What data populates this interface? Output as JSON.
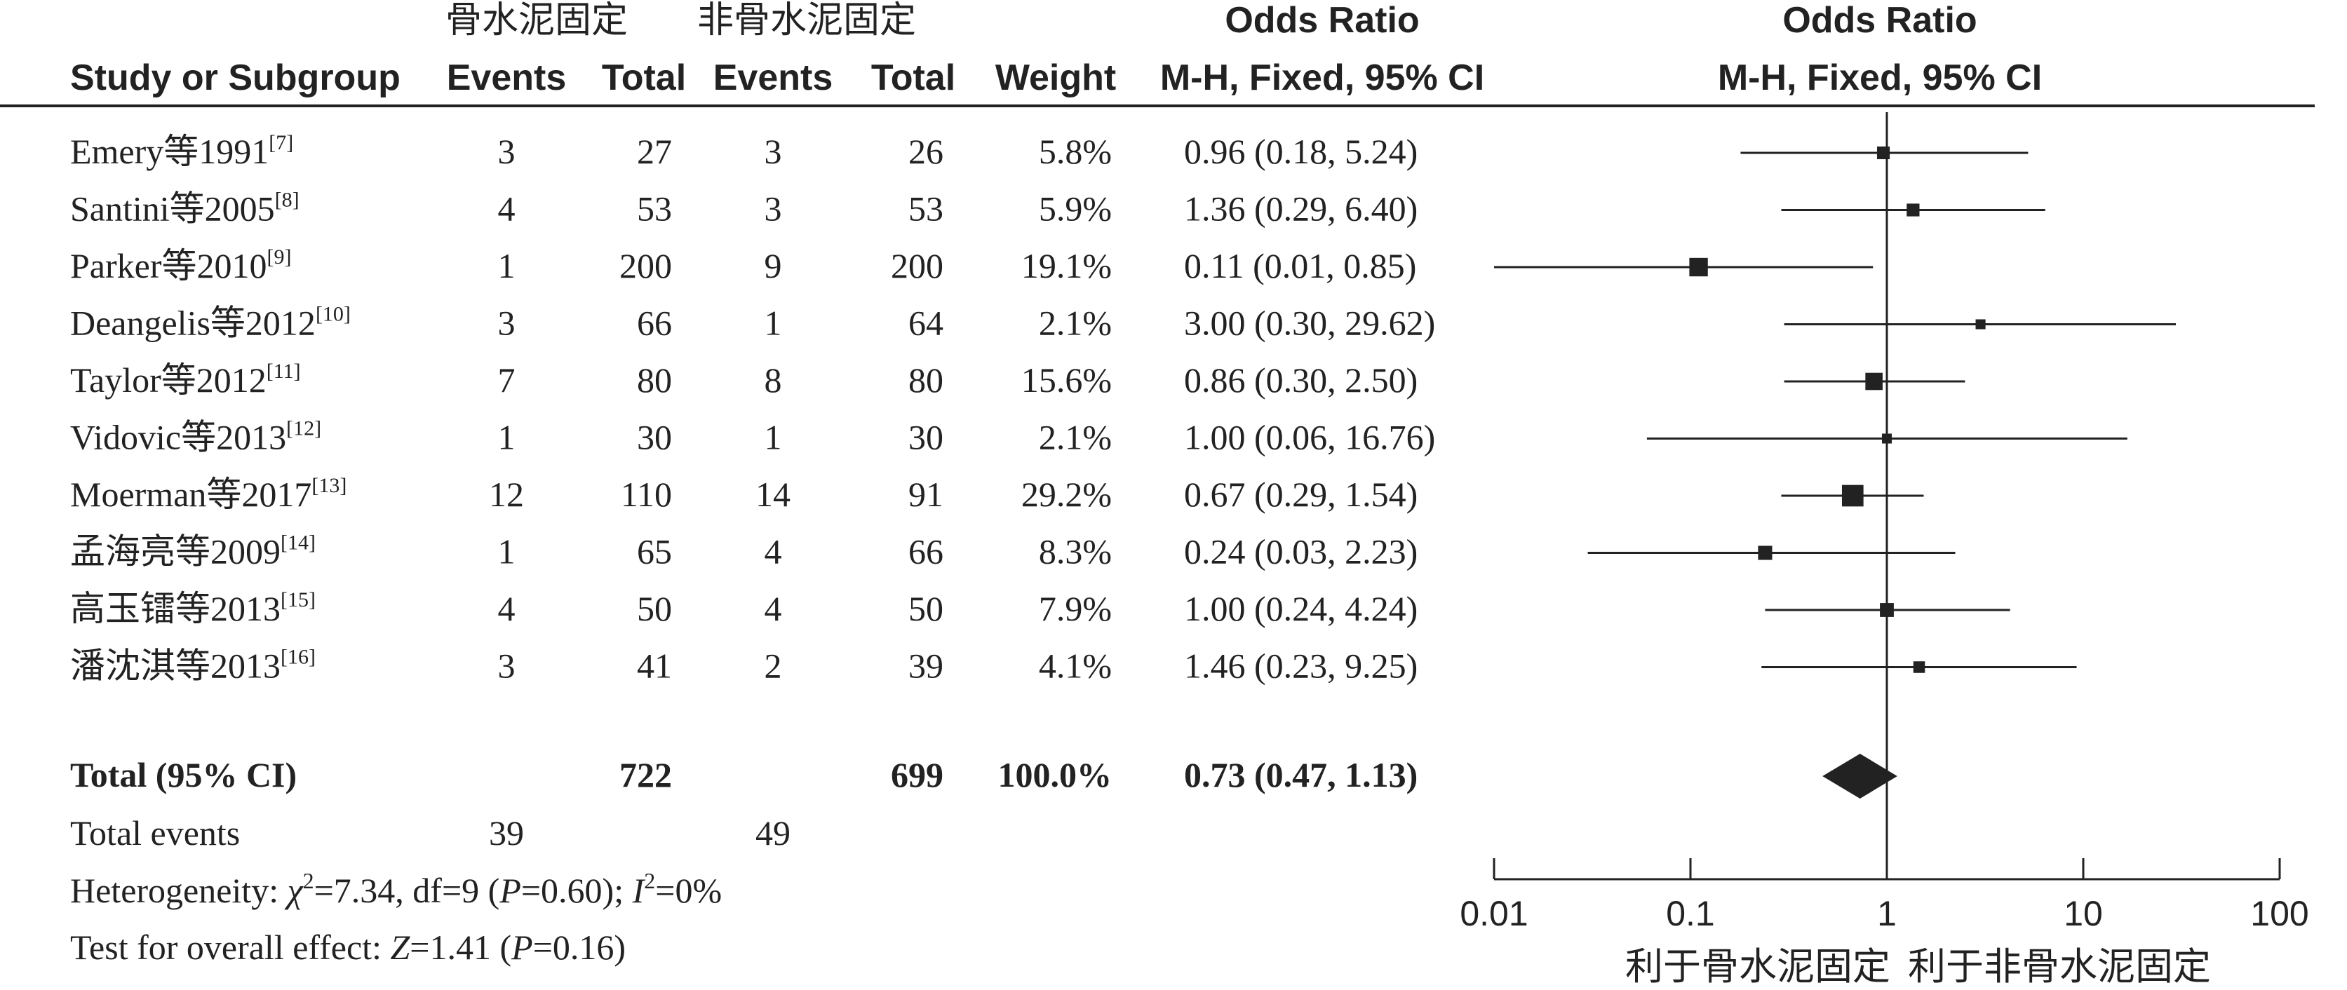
{
  "header": {
    "group1": "骨水泥固定",
    "group2": "非骨水泥固定",
    "odds_ratio_table": "Odds Ratio",
    "odds_ratio_plot": "Odds Ratio",
    "study_col": "Study or Subgroup",
    "events1": "Events",
    "total1": "Total",
    "events2": "Events",
    "total2": "Total",
    "weight": "Weight",
    "method_table": "M-H, Fixed, 95% CI",
    "method_plot": "M-H, Fixed, 95% CI"
  },
  "studies": [
    {
      "name": "Emery等1991",
      "ref": "[7]",
      "e1": "3",
      "t1": "27",
      "e2": "3",
      "t2": "26",
      "weight": "5.8%",
      "ci": "0.96 (0.18, 5.24)"
    },
    {
      "name": "Santini等2005",
      "ref": "[8]",
      "e1": "4",
      "t1": "53",
      "e2": "3",
      "t2": "53",
      "weight": "5.9%",
      "ci": "1.36 (0.29, 6.40)"
    },
    {
      "name": "Parker等2010",
      "ref": "[9]",
      "e1": "1",
      "t1": "200",
      "e2": "9",
      "t2": "200",
      "weight": "19.1%",
      "ci": "0.11 (0.01, 0.85)"
    },
    {
      "name": "Deangelis等2012",
      "ref": "[10]",
      "e1": "3",
      "t1": "66",
      "e2": "1",
      "t2": "64",
      "weight": "2.1%",
      "ci": "3.00 (0.30, 29.62)"
    },
    {
      "name": "Taylor等2012",
      "ref": "[11]",
      "e1": "7",
      "t1": "80",
      "e2": "8",
      "t2": "80",
      "weight": "15.6%",
      "ci": "0.86 (0.30, 2.50)"
    },
    {
      "name": "Vidovic等2013",
      "ref": "[12]",
      "e1": "1",
      "t1": "30",
      "e2": "1",
      "t2": "30",
      "weight": "2.1%",
      "ci": "1.00 (0.06, 16.76)"
    },
    {
      "name": "Moerman等2017",
      "ref": "[13]",
      "e1": "12",
      "t1": "110",
      "e2": "14",
      "t2": "91",
      "weight": "29.2%",
      "ci": "0.67 (0.29, 1.54)"
    },
    {
      "name": "孟海亮等2009",
      "ref": "[14]",
      "e1": "1",
      "t1": "65",
      "e2": "4",
      "t2": "66",
      "weight": "8.3%",
      "ci": "0.24 (0.03, 2.23)"
    },
    {
      "name": "高玉镭等2013",
      "ref": "[15]",
      "e1": "4",
      "t1": "50",
      "e2": "4",
      "t2": "50",
      "weight": "7.9%",
      "ci": "1.00 (0.24, 4.24)"
    },
    {
      "name": "潘沈淇等2013",
      "ref": "[16]",
      "e1": "3",
      "t1": "41",
      "e2": "2",
      "t2": "39",
      "weight": "4.1%",
      "ci": "1.46 (0.23, 9.25)"
    }
  ],
  "total": {
    "label": "Total (95% CI)",
    "t1": "722",
    "t2": "699",
    "weight": "100.0%",
    "ci": "0.73 (0.47, 1.13)"
  },
  "total_events": {
    "label": "Total events",
    "e1": "39",
    "e2": "49"
  },
  "heterogeneity": {
    "prefix": "Heterogeneity: ",
    "chi": "χ",
    "sup2": "2",
    "chi_val": "=7.34, df=9 (",
    "p": "P",
    "p_val": "=0.60); ",
    "i": "I",
    "i_sup": "2",
    "i_val": "=0%"
  },
  "overall_effect": {
    "prefix": "Test for overall effect: ",
    "z": "Z",
    "z_val": "=1.41 (",
    "p": "P",
    "p_val": "=0.16)"
  },
  "axis": {
    "ticks": [
      "0.01",
      "0.1",
      "1",
      "10",
      "100"
    ],
    "favours_left": "利于骨水泥固定",
    "favours_right": "利于非骨水泥固定"
  },
  "chart_data": {
    "type": "forest",
    "title": "Odds Ratio",
    "subtitle": "M-H, Fixed, 95% CI",
    "x_scale": "log",
    "xlim": [
      0.01,
      100
    ],
    "xticks": [
      0.01,
      0.1,
      1,
      10,
      100
    ],
    "xlabel_left": "利于骨水泥固定",
    "xlabel_right": "利于非骨水泥固定",
    "reference_line": 1,
    "series": [
      {
        "study": "Emery等1991",
        "or": 0.96,
        "lower": 0.18,
        "upper": 5.24,
        "weight": 5.8
      },
      {
        "study": "Santini等2005",
        "or": 1.36,
        "lower": 0.29,
        "upper": 6.4,
        "weight": 5.9
      },
      {
        "study": "Parker等2010",
        "or": 0.11,
        "lower": 0.01,
        "upper": 0.85,
        "weight": 19.1
      },
      {
        "study": "Deangelis等2012",
        "or": 3.0,
        "lower": 0.3,
        "upper": 29.62,
        "weight": 2.1
      },
      {
        "study": "Taylor等2012",
        "or": 0.86,
        "lower": 0.3,
        "upper": 2.5,
        "weight": 15.6
      },
      {
        "study": "Vidovic等2013",
        "or": 1.0,
        "lower": 0.06,
        "upper": 16.76,
        "weight": 2.1
      },
      {
        "study": "Moerman等2017",
        "or": 0.67,
        "lower": 0.29,
        "upper": 1.54,
        "weight": 29.2
      },
      {
        "study": "孟海亮等2009",
        "or": 0.24,
        "lower": 0.03,
        "upper": 2.23,
        "weight": 8.3
      },
      {
        "study": "高玉镭等2013",
        "or": 1.0,
        "lower": 0.24,
        "upper": 4.24,
        "weight": 7.9
      },
      {
        "study": "潘沈淇等2013",
        "or": 1.46,
        "lower": 0.23,
        "upper": 9.25,
        "weight": 4.1
      }
    ],
    "summary": {
      "or": 0.73,
      "lower": 0.47,
      "upper": 1.13,
      "weight": 100.0
    }
  }
}
